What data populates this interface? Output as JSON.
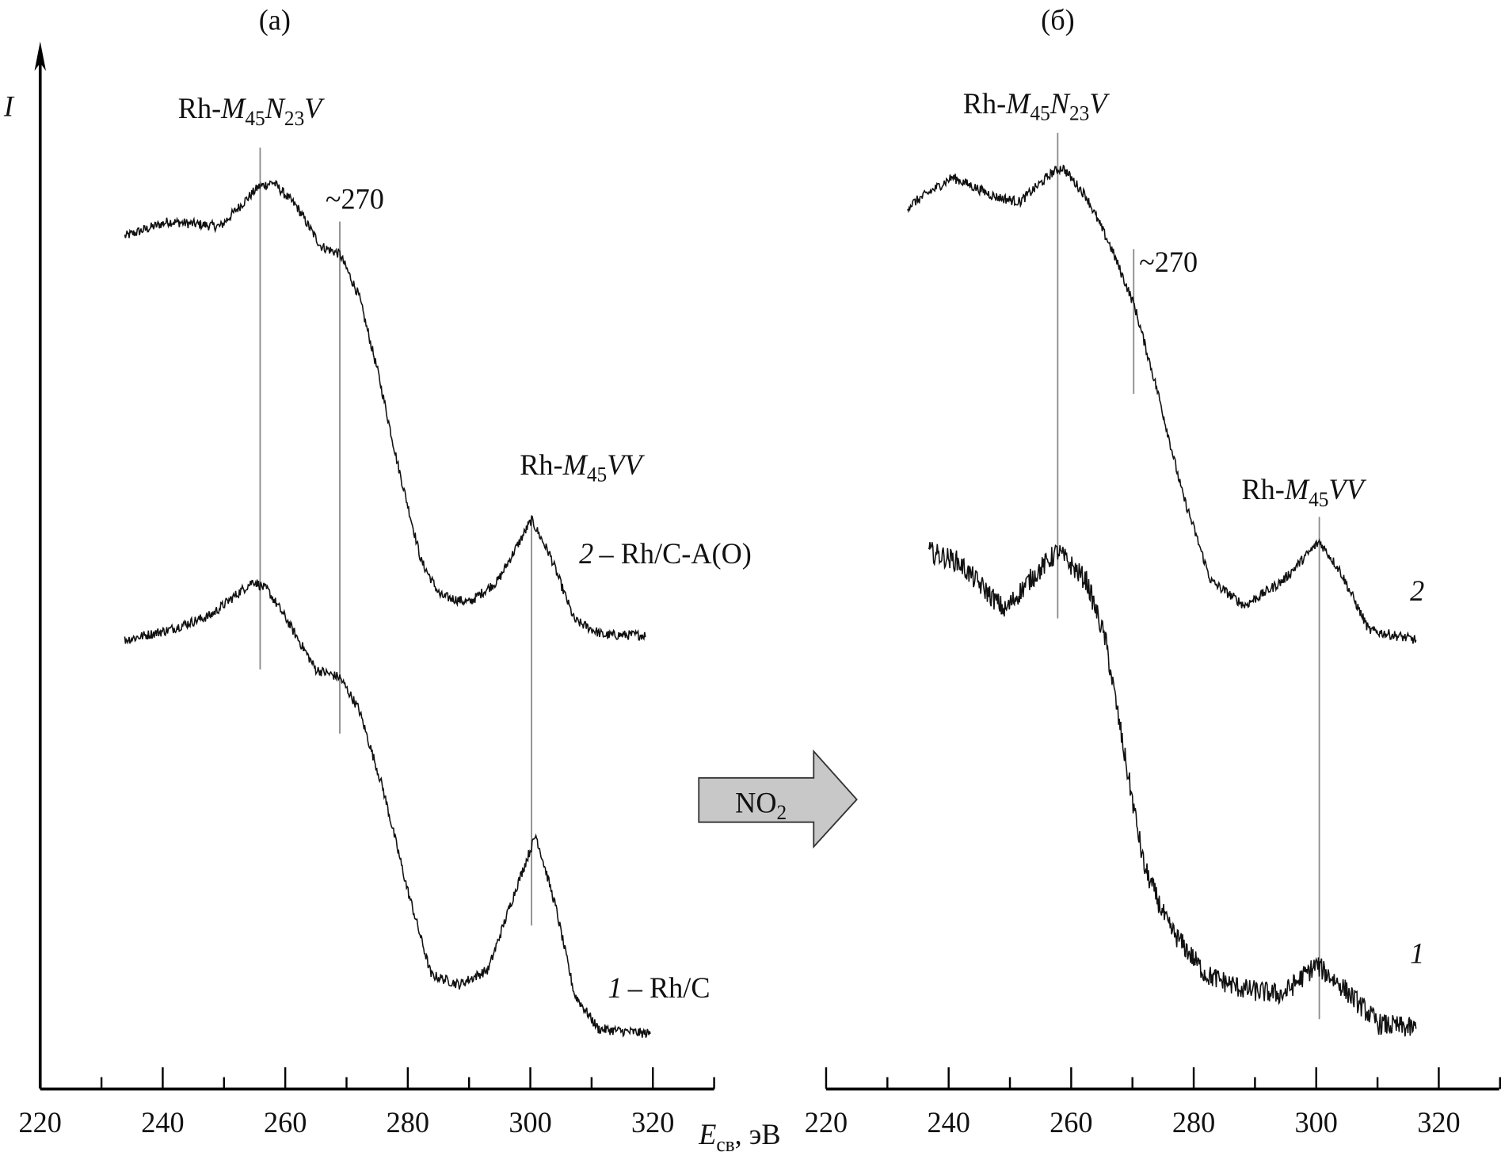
{
  "chart_data": [
    {
      "type": "line",
      "panel_label": "(a)",
      "ylabel": "I",
      "xlabel": "E_св, эВ",
      "xlim": [
        220,
        330
      ],
      "x_ticks": [
        220,
        240,
        260,
        280,
        300,
        320
      ],
      "grid": false,
      "series": [
        {
          "name": "2 – Rh/C-A(O)",
          "label_number": "2",
          "label_text": "– Rh/C-A(O)",
          "points": [
            [
              233.8,
              86.5
            ],
            [
              240.9,
              88
            ],
            [
              249.4,
              87.5
            ],
            [
              255.6,
              91.5
            ],
            [
              258,
              92
            ],
            [
              261.9,
              89.5
            ],
            [
              265.8,
              85.5
            ],
            [
              268.9,
              84.7
            ],
            [
              272,
              80.5
            ],
            [
              275.2,
              72.5
            ],
            [
              278.3,
              63.5
            ],
            [
              282.2,
              53.5
            ],
            [
              285.3,
              50
            ],
            [
              290,
              49.3
            ],
            [
              294.7,
              51.5
            ],
            [
              300.2,
              57.7
            ],
            [
              303.3,
              54
            ],
            [
              307.2,
              47.5
            ],
            [
              311.9,
              46
            ],
            [
              318.9,
              46
            ]
          ]
        },
        {
          "name": "1 – Rh/C",
          "label_number": "1",
          "label_text": "– Rh/C",
          "points": [
            [
              233.8,
              45.5
            ],
            [
              240.9,
              46.5
            ],
            [
              247.8,
              48
            ],
            [
              254.8,
              51.5
            ],
            [
              257.2,
              50.5
            ],
            [
              260.3,
              47.5
            ],
            [
              265,
              42.5
            ],
            [
              268.9,
              41.7
            ],
            [
              272,
              38.5
            ],
            [
              275.9,
              30.5
            ],
            [
              279.8,
              20.5
            ],
            [
              283.8,
              11.5
            ],
            [
              288.4,
              10.5
            ],
            [
              293.1,
              12
            ],
            [
              297.8,
              20.5
            ],
            [
              300.9,
              25.7
            ],
            [
              304.1,
              18.5
            ],
            [
              307.2,
              9.5
            ],
            [
              311.1,
              6
            ],
            [
              319.7,
              5.5
            ]
          ]
        }
      ],
      "annotations": {
        "peak1": {
          "text_main": "Rh-",
          "text_sym": "M",
          "sub1": "45",
          "sym2": "N",
          "sub2": "23",
          "sym3": "V",
          "energy": 255.9,
          "line": [
            95.5,
            42.5
          ]
        },
        "shoulder": {
          "text": "~270",
          "energy": 268.9,
          "line": [
            88,
            36
          ]
        },
        "peak2": {
          "text_main": "Rh-",
          "text_sym": "M",
          "sub1": "45",
          "sym2": "VV",
          "energy": 300.2,
          "line": [
            58,
            16.5
          ]
        }
      }
    },
    {
      "type": "line",
      "panel_label": "(б)",
      "xlim": [
        220,
        330
      ],
      "x_ticks": [
        220,
        240,
        260,
        280,
        300,
        320
      ],
      "grid": false,
      "series": [
        {
          "label_number": "2",
          "points": [
            [
              233.3,
              89.5
            ],
            [
              240.6,
              92.5
            ],
            [
              247.7,
              90.5
            ],
            [
              251.6,
              90
            ],
            [
              257,
              93
            ],
            [
              258.6,
              93.5
            ],
            [
              262.5,
              90.5
            ],
            [
              266.4,
              85.5
            ],
            [
              270.3,
              79.5
            ],
            [
              274.2,
              70.5
            ],
            [
              278.1,
              60.5
            ],
            [
              282.8,
              51.5
            ],
            [
              288.3,
              49
            ],
            [
              294.5,
              51.5
            ],
            [
              300.5,
              55.5
            ],
            [
              303.9,
              52.5
            ],
            [
              308.6,
              46.5
            ],
            [
              316.4,
              45.5
            ]
          ]
        },
        {
          "label_number": "1",
          "points": [
            [
              236.7,
              54.5
            ],
            [
              241.4,
              53.5
            ],
            [
              249.2,
              48.5
            ],
            [
              253.1,
              51.5
            ],
            [
              257.8,
              54.5
            ],
            [
              262.5,
              51.5
            ],
            [
              265.6,
              45.5
            ],
            [
              268.8,
              33.5
            ],
            [
              271.9,
              22.5
            ],
            [
              275.8,
              16.5
            ],
            [
              282,
              11.5
            ],
            [
              288.3,
              10
            ],
            [
              294.5,
              9.5
            ],
            [
              300,
              12.5
            ],
            [
              303.9,
              10.5
            ],
            [
              310.2,
              6.5
            ],
            [
              316.4,
              6
            ]
          ]
        }
      ],
      "annotations": {
        "peak1": {
          "text_main": "Rh-",
          "text_sym": "M",
          "sub1": "45",
          "sym2": "N",
          "sub2": "23",
          "sym3": "V",
          "energy": 257.8,
          "line": [
            97,
            47.7
          ]
        },
        "shoulder": {
          "text": "~270",
          "energy": 270.2,
          "line": [
            85.2,
            70.5
          ]
        },
        "peak2": {
          "text_main": "Rh-",
          "text_sym": "M",
          "sub1": "45",
          "sym2": "VV",
          "energy": 300.5,
          "line": [
            58,
            7
          ]
        }
      }
    }
  ],
  "arrow": {
    "text": "NO",
    "sub": "2",
    "fill": "#c8c8c8"
  },
  "xlabel": {
    "sym": "E",
    "sub": "св",
    "unit": ", эВ"
  }
}
